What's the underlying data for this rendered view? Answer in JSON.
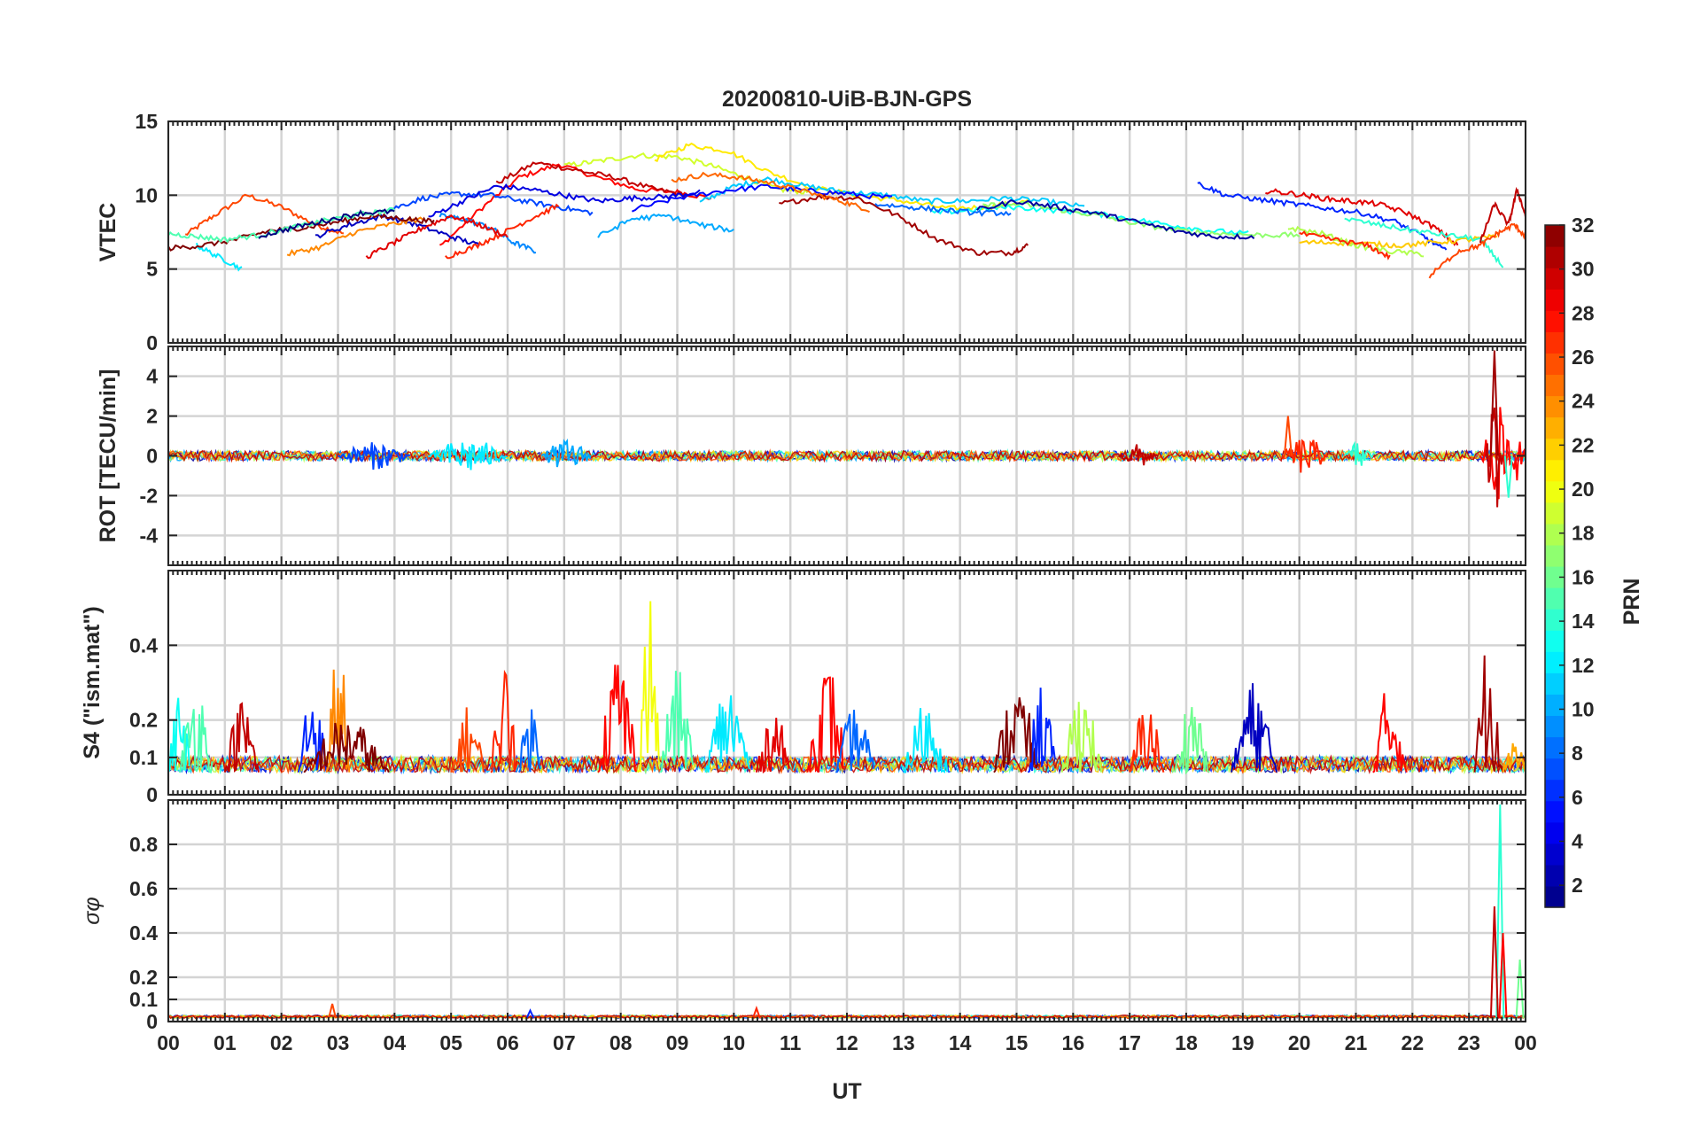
{
  "figure": {
    "title": "20200810-UiB-BJN-GPS",
    "xlabel": "UT",
    "xticks": [
      "00",
      "01",
      "02",
      "03",
      "04",
      "05",
      "06",
      "07",
      "08",
      "09",
      "10",
      "11",
      "12",
      "13",
      "14",
      "15",
      "16",
      "17",
      "18",
      "19",
      "20",
      "21",
      "22",
      "23",
      "00"
    ],
    "colorbar": {
      "label": "PRN",
      "ticks": [
        "2",
        "4",
        "6",
        "8",
        "10",
        "12",
        "14",
        "16",
        "18",
        "20",
        "22",
        "24",
        "26",
        "28",
        "30",
        "32"
      ],
      "range": [
        1,
        32
      ],
      "colormap": "jet"
    }
  },
  "chart_data": [
    {
      "type": "line",
      "id": "vtec",
      "ylabel": "VTEC",
      "xlim": [
        0,
        24
      ],
      "ylim": [
        0,
        15
      ],
      "yticks": [
        0,
        5,
        10,
        15
      ],
      "ytick_labels": [
        "0",
        "5",
        "10",
        "15"
      ],
      "grid": true,
      "series": [
        {
          "name": "PRN 26",
          "prn": 26,
          "t": [
            0.3,
            0.8,
            1.4,
            2.0,
            2.6,
            3.1
          ],
          "v": [
            7.3,
            8.6,
            10.0,
            9.2,
            8.0,
            7.4
          ]
        },
        {
          "name": "PRN 28",
          "prn": 28,
          "t": [
            4.8,
            5.5,
            6.2,
            6.9,
            7.6,
            8.3,
            9.0,
            9.6
          ],
          "v": [
            6.5,
            9.0,
            11.2,
            12.1,
            11.2,
            10.4,
            10.2,
            9.8
          ]
        },
        {
          "name": "PRN 30",
          "prn": 30,
          "t": [
            5.8,
            6.5,
            7.2,
            7.9,
            8.6,
            9.2
          ],
          "v": [
            10.8,
            12.2,
            11.7,
            11.2,
            10.4,
            10.0
          ]
        },
        {
          "name": "PRN 19",
          "prn": 19,
          "t": [
            7.0,
            7.6,
            8.3,
            9.0,
            9.6,
            10.2,
            10.8,
            11.3
          ],
          "v": [
            12.0,
            12.3,
            12.7,
            12.6,
            12.0,
            11.2,
            10.4,
            10.2
          ]
        },
        {
          "name": "PRN 21",
          "prn": 21,
          "t": [
            8.6,
            9.2,
            9.9,
            10.6,
            11.4,
            12.2,
            13.0,
            13.8,
            14.5,
            15.2
          ],
          "v": [
            12.4,
            13.4,
            13.0,
            11.6,
            10.5,
            10.0,
            9.6,
            9.1,
            9.2,
            9.6
          ]
        },
        {
          "name": "PRN 11",
          "prn": 11,
          "t": [
            9.4,
            10.0,
            10.6,
            11.3,
            12.0,
            12.7,
            13.4,
            14.1,
            14.8,
            15.5,
            16.2
          ],
          "v": [
            9.5,
            10.6,
            11.1,
            10.6,
            10.2,
            10.0,
            9.6,
            9.6,
            9.8,
            9.6,
            9.2
          ]
        },
        {
          "name": "PRN 5",
          "prn": 5,
          "t": [
            8.2,
            9.0,
            9.8,
            10.6,
            11.3,
            12.0,
            12.8
          ],
          "v": [
            9.0,
            9.8,
            10.3,
            10.6,
            10.3,
            10.1,
            9.8
          ]
        },
        {
          "name": "PRN 31",
          "prn": 31,
          "t": [
            10.8,
            11.5,
            12.2,
            12.9,
            13.6,
            14.3,
            14.9,
            15.2
          ],
          "v": [
            9.4,
            9.9,
            9.8,
            8.6,
            7.0,
            6.1,
            6.1,
            6.6
          ]
        },
        {
          "name": "PRN 25",
          "prn": 25,
          "t": [
            8.9,
            9.5,
            10.1,
            10.7,
            11.3,
            11.9,
            12.4
          ],
          "v": [
            11.0,
            11.4,
            11.2,
            10.8,
            10.2,
            9.6,
            9.0
          ]
        },
        {
          "name": "PRN 7",
          "prn": 7,
          "t": [
            3.9,
            4.5,
            5.1,
            5.7,
            6.3,
            6.9,
            7.5
          ],
          "v": [
            9.0,
            9.8,
            10.1,
            10.0,
            9.6,
            9.2,
            8.8
          ]
        },
        {
          "name": "PRN 4",
          "prn": 4,
          "t": [
            4.6,
            5.2,
            5.8,
            6.4,
            7.0,
            7.6,
            8.2,
            8.8,
            9.4
          ],
          "v": [
            8.5,
            9.6,
            10.6,
            10.4,
            10.0,
            9.6,
            9.8,
            9.9,
            10.2
          ]
        },
        {
          "name": "PRN 9",
          "prn": 9,
          "t": [
            4.8,
            5.2,
            5.7,
            6.1,
            6.5
          ],
          "v": [
            8.6,
            8.4,
            7.8,
            6.8,
            6.2
          ]
        },
        {
          "name": "PRN 12",
          "prn": 12,
          "t": [
            0.5,
            0.9,
            1.3
          ],
          "v": [
            6.6,
            5.8,
            5.0
          ]
        },
        {
          "name": "PRN 3",
          "prn": 3,
          "t": [
            2.6,
            3.2,
            3.8,
            4.4,
            5.0,
            5.5
          ],
          "v": [
            7.2,
            8.0,
            8.6,
            8.0,
            7.2,
            6.6
          ]
        },
        {
          "name": "PRN 27",
          "prn": 27,
          "t": [
            4.9,
            5.4,
            5.9,
            6.4,
            6.9
          ],
          "v": [
            5.8,
            6.5,
            7.4,
            8.4,
            9.3
          ]
        },
        {
          "name": "PRN 29",
          "prn": 29,
          "t": [
            3.5,
            4.0,
            4.5,
            5.0,
            5.5,
            6.0
          ],
          "v": [
            5.8,
            6.8,
            7.8,
            8.6,
            8.0,
            7.2
          ]
        },
        {
          "name": "PRN 24",
          "prn": 24,
          "t": [
            2.1,
            2.7,
            3.3,
            3.9,
            4.5
          ],
          "v": [
            6.0,
            6.5,
            7.5,
            8.0,
            8.4
          ]
        },
        {
          "name": "PRN 32",
          "prn": 32,
          "t": [
            0.0,
            0.6,
            1.2,
            1.8,
            2.4,
            3.0,
            3.6,
            4.2,
            4.7
          ],
          "v": [
            6.4,
            6.6,
            7.0,
            7.6,
            7.8,
            8.2,
            8.6,
            8.4,
            8.2
          ]
        },
        {
          "name": "PRN 15",
          "prn": 15,
          "t": [
            0.0,
            0.5,
            1.0,
            1.6,
            2.2,
            2.8,
            3.4,
            4.0
          ],
          "v": [
            7.4,
            7.2,
            7.0,
            7.3,
            7.8,
            8.3,
            8.7,
            9.0
          ]
        },
        {
          "name": "PRN 1",
          "prn": 1,
          "t": [
            1.6,
            2.2,
            2.8,
            3.4,
            4.0
          ],
          "v": [
            7.2,
            7.8,
            8.3,
            8.8,
            8.9
          ]
        },
        {
          "name": "PRN 13",
          "prn": 13,
          "t": [
            13.5,
            14.2,
            14.9,
            15.6,
            16.3,
            17.0,
            17.7,
            18.4,
            19.1
          ],
          "v": [
            8.8,
            9.0,
            9.2,
            9.0,
            8.8,
            8.4,
            8.0,
            7.6,
            7.4
          ]
        },
        {
          "name": "PRN 17",
          "prn": 17,
          "t": [
            14.4,
            15.1,
            15.8,
            16.5,
            17.2,
            17.9,
            18.6,
            19.3,
            20.0
          ],
          "v": [
            9.3,
            9.4,
            9.0,
            8.6,
            8.0,
            7.6,
            7.4,
            7.3,
            7.3
          ]
        },
        {
          "name": "PRN 2",
          "prn": 2,
          "t": [
            14.3,
            15.0,
            15.7,
            16.4,
            17.1,
            17.8,
            18.5,
            19.2
          ],
          "v": [
            9.0,
            9.6,
            9.2,
            8.8,
            8.2,
            7.6,
            7.2,
            7.2
          ]
        },
        {
          "name": "PRN 6",
          "prn": 6,
          "t": [
            18.2,
            18.7,
            19.3,
            19.9,
            20.5,
            21.1,
            21.7,
            22.2,
            22.6
          ],
          "v": [
            10.8,
            10.0,
            9.7,
            9.4,
            9.1,
            8.8,
            8.2,
            7.2,
            6.2
          ]
        },
        {
          "name": "PRN 29b",
          "prn": 29,
          "t": [
            19.4,
            19.9,
            20.4,
            20.9,
            21.4,
            21.9,
            22.4,
            22.8
          ],
          "v": [
            10.3,
            10.1,
            9.8,
            9.6,
            9.4,
            8.8,
            7.8,
            6.6
          ]
        },
        {
          "name": "PRN 22",
          "prn": 22,
          "t": [
            20.0,
            20.6,
            21.2,
            21.8,
            22.4,
            23.0,
            23.5
          ],
          "v": [
            6.8,
            6.8,
            6.7,
            6.6,
            6.8,
            7.0,
            7.2
          ]
        },
        {
          "name": "PRN 18",
          "prn": 18,
          "t": [
            19.8,
            20.4,
            21.0,
            21.6,
            22.2
          ],
          "v": [
            7.8,
            7.4,
            6.6,
            6.2,
            6.0
          ]
        },
        {
          "name": "PRN 14",
          "prn": 14,
          "t": [
            20.8,
            21.4,
            22.0,
            22.6,
            23.2,
            23.6
          ],
          "v": [
            8.4,
            8.0,
            7.6,
            7.3,
            7.0,
            5.2
          ]
        },
        {
          "name": "PRN 27b",
          "prn": 27,
          "t": [
            20.0,
            20.6,
            21.2,
            21.6
          ],
          "v": [
            7.4,
            7.0,
            6.6,
            5.8
          ]
        },
        {
          "name": "PRN 26b",
          "prn": 26,
          "t": [
            22.3,
            22.8,
            23.2,
            23.5,
            23.8,
            24.0
          ],
          "v": [
            4.5,
            6.2,
            6.6,
            7.4,
            8.0,
            7.2
          ]
        },
        {
          "name": "PRN 30b",
          "prn": 30,
          "t": [
            23.2,
            23.45,
            23.7,
            23.85,
            24.0
          ],
          "v": [
            6.8,
            9.4,
            8.0,
            10.4,
            8.6
          ]
        },
        {
          "name": "PRN 10",
          "prn": 10,
          "t": [
            7.6,
            8.2,
            8.8,
            9.4,
            10.0
          ],
          "v": [
            7.2,
            8.4,
            8.6,
            8.0,
            7.6
          ]
        },
        {
          "name": "PRN 8",
          "prn": 8,
          "t": [
            12.5,
            13.1,
            13.7,
            14.3,
            14.9
          ],
          "v": [
            9.4,
            9.2,
            9.0,
            8.8,
            8.8
          ]
        }
      ]
    },
    {
      "type": "line",
      "id": "rot",
      "ylabel": "ROT [TECU/min]",
      "xlim": [
        0,
        24
      ],
      "ylim": [
        -5.5,
        5.5
      ],
      "yticks": [
        -4,
        -2,
        0,
        2,
        4
      ],
      "ytick_labels": [
        "-4",
        "-2",
        "0",
        "2",
        "4"
      ],
      "grid": true,
      "baseline_noise": 0.25,
      "bursts": [
        {
          "prn": 7,
          "t0": 3.0,
          "t1": 4.3,
          "amp": 0.7
        },
        {
          "prn": 12,
          "t0": 4.6,
          "t1": 6.0,
          "amp": 0.9
        },
        {
          "prn": 10,
          "t0": 6.6,
          "t1": 7.5,
          "amp": 0.8
        },
        {
          "prn": 30,
          "t0": 16.8,
          "t1": 17.5,
          "amp": 0.6
        },
        {
          "prn": 27,
          "t0": 19.7,
          "t1": 20.5,
          "amp": 1.0
        },
        {
          "prn": 14,
          "t0": 20.8,
          "t1": 21.3,
          "amp": 0.8
        },
        {
          "prn": 28,
          "t0": 23.2,
          "t1": 24.0,
          "amp": 2.5
        },
        {
          "prn": 30,
          "t0": 23.3,
          "t1": 23.6,
          "amp": 3.0
        }
      ],
      "spikes": [
        {
          "prn": 31,
          "t": 23.45,
          "v": 5.3
        },
        {
          "prn": 26,
          "t": 19.8,
          "v": 2.0
        },
        {
          "prn": 14,
          "t": 23.7,
          "v": -2.1
        }
      ]
    },
    {
      "type": "line",
      "id": "s4",
      "ylabel": "S4 (\"ism.mat\")",
      "xlim": [
        0,
        24
      ],
      "ylim": [
        0,
        0.6
      ],
      "yticks": [
        0,
        0.1,
        0.2,
        0.4
      ],
      "ytick_labels": [
        "0",
        "0.1",
        "0.2",
        "0.4"
      ],
      "grid": true,
      "baseline": 0.06,
      "bursts": [
        {
          "prn": 13,
          "t0": 0.0,
          "t1": 0.4,
          "amp": 0.22
        },
        {
          "prn": 15,
          "t0": 0.2,
          "t1": 0.8,
          "amp": 0.25
        },
        {
          "prn": 30,
          "t0": 1.0,
          "t1": 1.6,
          "amp": 0.2
        },
        {
          "prn": 6,
          "t0": 2.3,
          "t1": 2.8,
          "amp": 0.25
        },
        {
          "prn": 24,
          "t0": 2.8,
          "t1": 3.2,
          "amp": 0.38
        },
        {
          "prn": 32,
          "t0": 2.4,
          "t1": 3.9,
          "amp": 0.15
        },
        {
          "prn": 26,
          "t0": 5.0,
          "t1": 5.6,
          "amp": 0.18
        },
        {
          "prn": 27,
          "t0": 5.7,
          "t1": 6.2,
          "amp": 0.3
        },
        {
          "prn": 8,
          "t0": 6.2,
          "t1": 6.6,
          "amp": 0.2
        },
        {
          "prn": 28,
          "t0": 7.6,
          "t1": 8.3,
          "amp": 0.34
        },
        {
          "prn": 20,
          "t0": 8.3,
          "t1": 8.7,
          "amp": 0.5
        },
        {
          "prn": 15,
          "t0": 8.7,
          "t1": 9.3,
          "amp": 0.28
        },
        {
          "prn": 12,
          "t0": 9.5,
          "t1": 10.3,
          "amp": 0.25
        },
        {
          "prn": 29,
          "t0": 10.4,
          "t1": 11.0,
          "amp": 0.18
        },
        {
          "prn": 28,
          "t0": 11.3,
          "t1": 12.0,
          "amp": 0.3
        },
        {
          "prn": 8,
          "t0": 11.8,
          "t1": 12.5,
          "amp": 0.18
        },
        {
          "prn": 12,
          "t0": 13.0,
          "t1": 13.8,
          "amp": 0.2
        },
        {
          "prn": 32,
          "t0": 14.6,
          "t1": 15.4,
          "amp": 0.25
        },
        {
          "prn": 6,
          "t0": 15.2,
          "t1": 15.7,
          "amp": 0.25
        },
        {
          "prn": 18,
          "t0": 15.8,
          "t1": 16.5,
          "amp": 0.24
        },
        {
          "prn": 27,
          "t0": 17.0,
          "t1": 17.6,
          "amp": 0.2
        },
        {
          "prn": 16,
          "t0": 17.8,
          "t1": 18.4,
          "amp": 0.22
        },
        {
          "prn": 3,
          "t0": 18.8,
          "t1": 19.6,
          "amp": 0.25
        },
        {
          "prn": 28,
          "t0": 21.3,
          "t1": 21.9,
          "amp": 0.25
        },
        {
          "prn": 31,
          "t0": 23.1,
          "t1": 23.6,
          "amp": 0.38
        },
        {
          "prn": 23,
          "t0": 23.6,
          "t1": 24.0,
          "amp": 0.12
        }
      ]
    },
    {
      "type": "line",
      "id": "sigphi",
      "ylabel": "σφ",
      "xlim": [
        0,
        24
      ],
      "ylim": [
        0,
        1.0
      ],
      "yticks": [
        0,
        0.1,
        0.2,
        0.4,
        0.6,
        0.8
      ],
      "ytick_labels": [
        "0",
        "0.1",
        "0.2",
        "0.4",
        "0.6",
        "0.8"
      ],
      "grid": true,
      "baseline": 0.015,
      "spikes": [
        {
          "prn": 14,
          "t": 23.55,
          "v": 0.98
        },
        {
          "prn": 30,
          "t": 23.45,
          "v": 0.52
        },
        {
          "prn": 28,
          "t": 23.6,
          "v": 0.4
        },
        {
          "prn": 16,
          "t": 23.9,
          "v": 0.28
        },
        {
          "prn": 26,
          "t": 2.9,
          "v": 0.08
        },
        {
          "prn": 6,
          "t": 6.4,
          "v": 0.05
        },
        {
          "prn": 27,
          "t": 10.4,
          "v": 0.06
        }
      ]
    }
  ]
}
